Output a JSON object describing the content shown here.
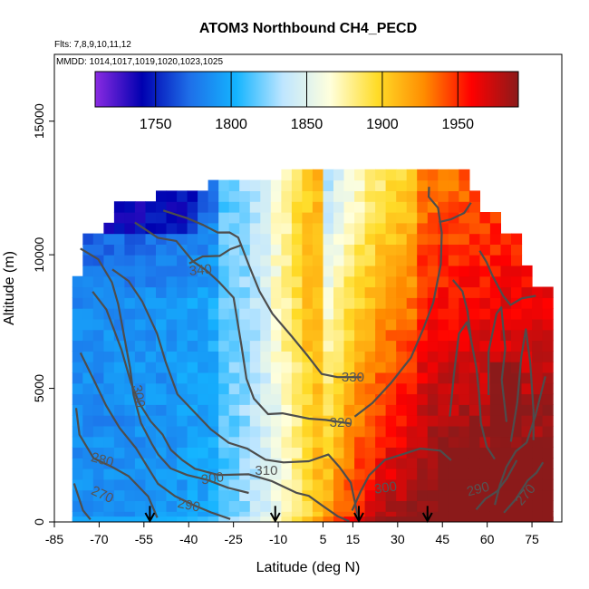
{
  "chart_data": {
    "type": "heatmap",
    "title": "ATOM3 Northbound CH4_PECD",
    "subtitle_flights": "Flts: 7,8,9,10,11,12",
    "subtitle_dates": "MMDD: 1014,1017,1019,1020,1023,1025",
    "xlabel": "Latitude (deg N)",
    "ylabel": "Altitude (m)",
    "xlim": [
      -85,
      85
    ],
    "ylim": [
      0,
      17500
    ],
    "x_ticks": [
      -85,
      -70,
      -55,
      -40,
      -25,
      -10,
      5,
      15,
      30,
      45,
      60,
      75
    ],
    "y_ticks": [
      0,
      5000,
      10000,
      15000
    ],
    "colorbar": {
      "range": [
        1710,
        1990
      ],
      "ticks": [
        1750,
        1800,
        1850,
        1900,
        1950
      ],
      "colors": [
        "#8a2be2",
        "#0000b0",
        "#1e6ee8",
        "#14b4ff",
        "#bfe6ff",
        "#ffffdc",
        "#ffdc28",
        "#ff8c00",
        "#ff0000",
        "#8b1a1a"
      ]
    },
    "field_description": {
      "lat_extent": [
        -79,
        79
      ],
      "cells_lat_step": 3.5,
      "cells_alt_step": 400
    },
    "theta_contours": [
      {
        "level": 270,
        "label_pos": [
          -69,
          1000
        ]
      },
      {
        "level": 280,
        "label_pos": [
          -69,
          2300
        ]
      },
      {
        "level": 290,
        "label_pos": [
          -40,
          600
        ]
      },
      {
        "level": 300,
        "label_pos": [
          -57,
          4700
        ]
      },
      {
        "level": 300,
        "label_pos": [
          -32,
          1600
        ]
      },
      {
        "level": 300,
        "label_pos": [
          26,
          1250
        ]
      },
      {
        "level": 310,
        "label_pos": [
          -14,
          1900
        ]
      },
      {
        "level": 320,
        "label_pos": [
          11,
          3700
        ]
      },
      {
        "level": 330,
        "label_pos": [
          15,
          5400
        ]
      },
      {
        "level": 340,
        "label_pos": [
          -36,
          9400
        ]
      },
      {
        "level": 290,
        "label_pos": [
          57,
          1200
        ]
      },
      {
        "level": 270,
        "label_pos": [
          73,
          1000
        ]
      }
    ],
    "arrow_latitudes": [
      -53,
      -11,
      17,
      40
    ]
  }
}
